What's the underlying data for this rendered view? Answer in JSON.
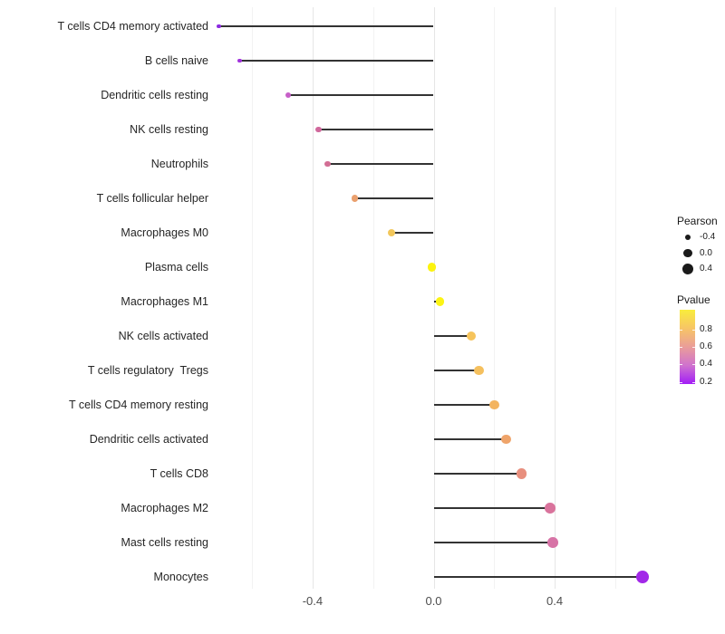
{
  "chart_data": {
    "type": "scatter",
    "subtype": "lollipop",
    "title": "",
    "xlabel": "",
    "ylabel": "",
    "orientation": "horizontal",
    "xlim": [
      -0.72,
      0.79
    ],
    "grid": "vertical-only",
    "x_ticks_major_values": [
      -0.4,
      0.0,
      0.4
    ],
    "x_tick_labels": [
      "-0.4",
      "0.0",
      "0.4"
    ],
    "x_ticks_minor_values": [
      -0.6,
      -0.2,
      0.2,
      0.6
    ],
    "points": [
      {
        "label": "T cells CD4 memory activated",
        "pearson": -0.71,
        "color": "#8c2be0"
      },
      {
        "label": "B cells naive",
        "pearson": -0.64,
        "color": "#a133dc"
      },
      {
        "label": "Dendritic cells resting",
        "pearson": -0.48,
        "color": "#c75fc8"
      },
      {
        "label": "NK cells resting",
        "pearson": -0.38,
        "color": "#d0689c"
      },
      {
        "label": "Neutrophils",
        "pearson": -0.35,
        "color": "#d26e94"
      },
      {
        "label": "T cells follicular helper",
        "pearson": -0.26,
        "color": "#eaa06e"
      },
      {
        "label": "Macrophages M0",
        "pearson": -0.14,
        "color": "#f2c75b"
      },
      {
        "label": "Plasma cells",
        "pearson": -0.005,
        "color": "#fcf30e"
      },
      {
        "label": "Macrophages M1",
        "pearson": 0.02,
        "color": "#fcf414"
      },
      {
        "label": "NK cells activated",
        "pearson": 0.125,
        "color": "#f6c45c"
      },
      {
        "label": "T cells regulatory  Tregs",
        "pearson": 0.15,
        "color": "#f5c05e"
      },
      {
        "label": "T cells CD4 memory resting",
        "pearson": 0.2,
        "color": "#f3b460"
      },
      {
        "label": "Dendritic cells activated",
        "pearson": 0.24,
        "color": "#efa46a"
      },
      {
        "label": "T cells CD8",
        "pearson": 0.29,
        "color": "#e88f7e"
      },
      {
        "label": "Macrophages M2",
        "pearson": 0.385,
        "color": "#d9739c"
      },
      {
        "label": "Mast cells resting",
        "pearson": 0.395,
        "color": "#d773a6"
      },
      {
        "label": "Monocytes",
        "pearson": 0.69,
        "color": "#a228e8"
      }
    ],
    "legend_size": {
      "title": "Pearson",
      "items": [
        {
          "label": "-0.4",
          "value": -0.4
        },
        {
          "label": "0.0",
          "value": 0.0
        },
        {
          "label": "0.4",
          "value": 0.4
        }
      ],
      "dot_color": "#1a1a1a"
    },
    "legend_color": {
      "title": "Pvalue",
      "tick_labels": [
        "0.8",
        "0.6",
        "0.4",
        "0.2"
      ],
      "tick_values": [
        0.8,
        0.6,
        0.4,
        0.2
      ],
      "gradient_top_to_bottom": [
        "#f9ed3c",
        "#f7c566",
        "#ea9d99",
        "#cf72ce",
        "#a21ef6"
      ]
    },
    "stem_color": "#333333",
    "gridline_major_color": "#e6e6e6",
    "gridline_minor_color": "#f2f2f2"
  }
}
